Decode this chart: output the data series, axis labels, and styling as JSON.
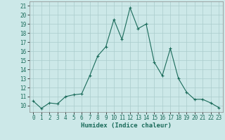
{
  "x": [
    0,
    1,
    2,
    3,
    4,
    5,
    6,
    7,
    8,
    9,
    10,
    11,
    12,
    13,
    14,
    15,
    16,
    17,
    18,
    19,
    20,
    21,
    22,
    23
  ],
  "y": [
    10.5,
    9.7,
    10.3,
    10.2,
    11.0,
    11.2,
    11.3,
    13.3,
    15.5,
    16.5,
    19.5,
    17.3,
    20.8,
    18.5,
    19.0,
    14.8,
    13.3,
    16.3,
    13.0,
    11.5,
    10.7,
    10.7,
    10.3,
    9.8
  ],
  "title": "",
  "xlabel": "Humidex (Indice chaleur)",
  "ylabel": "",
  "xlim": [
    -0.5,
    23.5
  ],
  "ylim": [
    9.3,
    21.5
  ],
  "yticks": [
    10,
    11,
    12,
    13,
    14,
    15,
    16,
    17,
    18,
    19,
    20,
    21
  ],
  "xticks": [
    0,
    1,
    2,
    3,
    4,
    5,
    6,
    7,
    8,
    9,
    10,
    11,
    12,
    13,
    14,
    15,
    16,
    17,
    18,
    19,
    20,
    21,
    22,
    23
  ],
  "line_color": "#1a6b5a",
  "marker": "+",
  "bg_color": "#cce8e8",
  "grid_color": "#aacccc",
  "label_fontsize": 6.5,
  "tick_fontsize": 5.5
}
